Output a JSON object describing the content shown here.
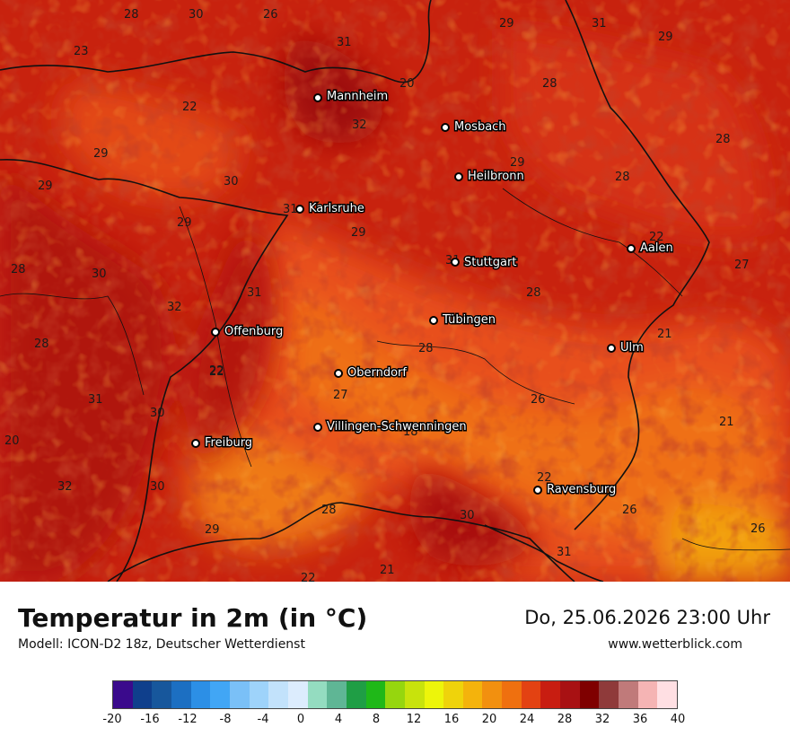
{
  "title": "Temperatur in 2m (in °C)",
  "model": "Modell: ICON-D2 18z, Deutscher Wetterdienst",
  "datetime": "Do, 25.06.2026 23:00 Uhr",
  "website": "www.wetterblick.com",
  "cities": [
    {
      "name": "Mannheim"
    },
    {
      "name": "Mosbach"
    },
    {
      "name": "Heilbronn"
    },
    {
      "name": "Karlsruhe"
    },
    {
      "name": "Aalen"
    },
    {
      "name": "Stuttgart"
    },
    {
      "name": "Tübingen"
    },
    {
      "name": "Offenburg"
    },
    {
      "name": "Ulm"
    },
    {
      "name": "Oberndorf"
    },
    {
      "name": "Villingen-Schwenningen"
    },
    {
      "name": "Freiburg"
    },
    {
      "name": "Ravensburg"
    }
  ],
  "temperature_labels": [
    "28",
    "30",
    "26",
    "29",
    "31",
    "29",
    "23",
    "31",
    "20",
    "28",
    "22",
    "32",
    "28",
    "29",
    "29",
    "29",
    "28",
    "30",
    "22",
    "31",
    "29",
    "29",
    "27",
    "30",
    "31",
    "32",
    "28",
    "22",
    "31",
    "28",
    "28",
    "21",
    "28",
    "22",
    "27",
    "26",
    "31",
    "30",
    "20",
    "18",
    "21",
    "32",
    "30",
    "22",
    "28",
    "26",
    "26",
    "29",
    "30",
    "31",
    "21",
    "22"
  ],
  "colorbar": {
    "colors": [
      "#3a0a8c",
      "#0f3f8c",
      "#17579c",
      "#1c6fc2",
      "#2c8fe6",
      "#41a6f5",
      "#7ac0f7",
      "#9ed3fa",
      "#c2e2fb",
      "#dcecfd",
      "#94dcc0",
      "#5fb695",
      "#1f9e45",
      "#1fb818",
      "#96d60e",
      "#c8e30c",
      "#edf50a",
      "#efd30b",
      "#f4b30c",
      "#f2900f",
      "#ef700f",
      "#e34212",
      "#c81d11",
      "#a81113",
      "#7f0000",
      "#8f3a3a",
      "#c07a7a",
      "#f5b4b4",
      "#ffdfe3"
    ],
    "tick_labels": [
      "-20",
      "-16",
      "-12",
      "-8",
      "-4",
      "0",
      "4",
      "8",
      "12",
      "16",
      "20",
      "24",
      "28",
      "32",
      "36",
      "40"
    ]
  }
}
